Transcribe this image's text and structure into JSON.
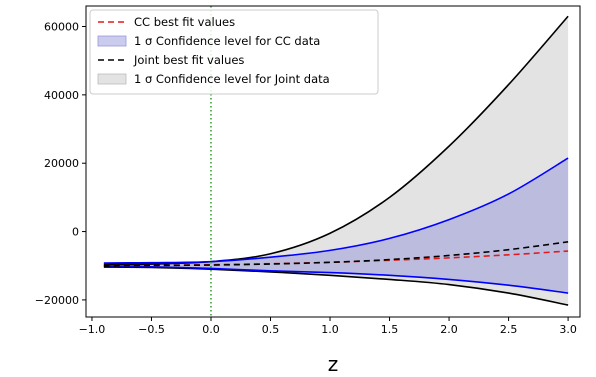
{
  "chart_data": {
    "type": "line",
    "title": "",
    "xlabel": "z",
    "ylabel": "",
    "xlim": [
      -1.05,
      3.1
    ],
    "ylim": [
      -25000,
      66000
    ],
    "xticks": [
      -1.0,
      -0.5,
      0.0,
      0.5,
      1.0,
      1.5,
      2.0,
      2.5,
      3.0
    ],
    "xtick_labels": [
      "−1.0",
      "−0.5",
      "0.0",
      "0.5",
      "1.0",
      "1.5",
      "2.0",
      "2.5",
      "3.0"
    ],
    "yticks": [
      -20000,
      0,
      20000,
      40000,
      60000
    ],
    "ytick_labels": [
      "−20000",
      "0",
      "20000",
      "40000",
      "60000"
    ],
    "grid": false,
    "legend_position": "top-left",
    "vline": {
      "x": 0.0,
      "color": "#2ca02c",
      "style": "dotted"
    },
    "x": [
      -0.9,
      -0.5,
      0.0,
      0.5,
      1.0,
      1.5,
      2.0,
      2.5,
      3.0
    ],
    "series": [
      {
        "name": "CC best fit values",
        "kind": "line",
        "style": "dashed",
        "color": "#e41a1c",
        "values": [
          -10000,
          -9900,
          -9700,
          -9400,
          -9000,
          -8400,
          -7700,
          -6800,
          -5700
        ]
      },
      {
        "name": "1 σ Confidence level for CC data",
        "kind": "band",
        "color": "#0000ff",
        "fill": "#8c8cd9",
        "upper": [
          -9200,
          -9100,
          -8800,
          -7500,
          -5500,
          -2000,
          3500,
          11000,
          21500
        ],
        "lower": [
          -10000,
          -10300,
          -10800,
          -11500,
          -12000,
          -12800,
          -14000,
          -15700,
          -18000
        ]
      },
      {
        "name": "Joint best fit values",
        "kind": "line",
        "style": "dashed",
        "color": "#000000",
        "values": [
          -10000,
          -9900,
          -9800,
          -9500,
          -9000,
          -8200,
          -7000,
          -5300,
          -3000
        ]
      },
      {
        "name": "1 σ Confidence level for Joint data",
        "kind": "band",
        "color": "#000000",
        "fill": "#c8c8c8",
        "upper": [
          -9600,
          -9500,
          -8800,
          -6500,
          -500,
          10000,
          25000,
          43000,
          63000
        ],
        "lower": [
          -10400,
          -10500,
          -11000,
          -11800,
          -12800,
          -14000,
          -15500,
          -18000,
          -21500
        ]
      }
    ]
  }
}
